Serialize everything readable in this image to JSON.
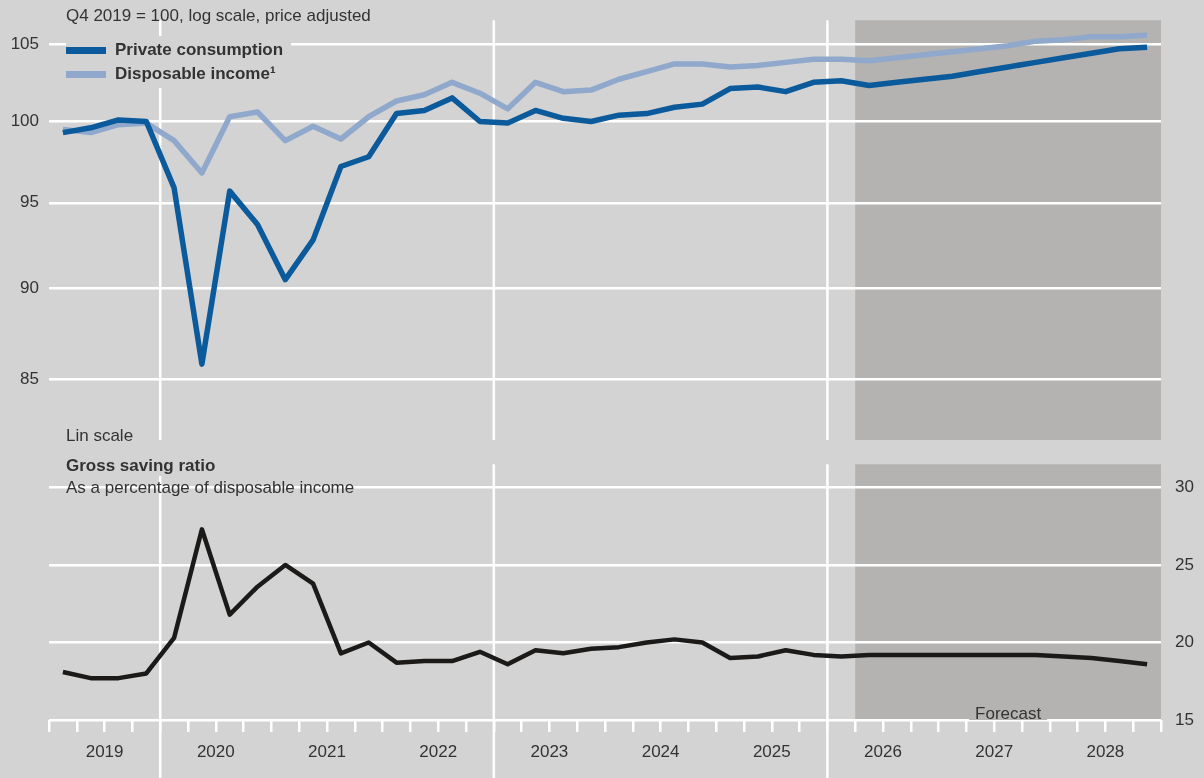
{
  "chart_data": [
    {
      "type": "line",
      "subtitle": "Q4 2019 = 100, log scale, price adjusted",
      "log": true,
      "grid": "y",
      "legend": "top left",
      "tick_labels": "y",
      "marker": "none",
      "xlim": [
        2019,
        2029
      ],
      "ylim": [
        85,
        106.6
      ],
      "yticks": [
        85,
        90,
        95,
        100,
        105
      ],
      "series": [
        {
          "name": "Private consumption",
          "color": "#0a5a9c",
          "x": [
            2019.125,
            2019.375,
            2019.625,
            2019.875,
            2020.125,
            2020.375,
            2020.625,
            2020.875,
            2021.125,
            2021.375,
            2021.625,
            2021.875,
            2022.125,
            2022.375,
            2022.625,
            2022.875,
            2023.125,
            2023.375,
            2023.625,
            2023.875,
            2024.125,
            2024.375,
            2024.625,
            2024.875,
            2025.125,
            2025.375,
            2025.625,
            2025.875,
            2026.125,
            2026.375,
            2026.625,
            2026.875,
            2027.125,
            2027.375,
            2027.625,
            2027.875,
            2028.125,
            2028.375,
            2028.625,
            2028.875
          ],
          "values": [
            99.3,
            99.6,
            100.1,
            100.0,
            95.9,
            85.8,
            95.7,
            93.7,
            90.5,
            92.8,
            97.2,
            97.8,
            100.5,
            100.7,
            101.5,
            100.0,
            99.9,
            100.7,
            100.2,
            100.0,
            100.4,
            100.5,
            100.9,
            101.1,
            102.1,
            102.2,
            101.9,
            102.5,
            102.6,
            102.3,
            102.5,
            102.7,
            102.9,
            103.2,
            103.5,
            103.8,
            104.1,
            104.4,
            104.7,
            104.8
          ]
        },
        {
          "name": "Disposable income¹",
          "color": "#8fa8cc",
          "x": [
            2019.125,
            2019.375,
            2019.625,
            2019.875,
            2020.125,
            2020.375,
            2020.625,
            2020.875,
            2021.125,
            2021.375,
            2021.625,
            2021.875,
            2022.125,
            2022.375,
            2022.625,
            2022.875,
            2023.125,
            2023.375,
            2023.625,
            2023.875,
            2024.125,
            2024.375,
            2024.625,
            2024.875,
            2025.125,
            2025.375,
            2025.625,
            2025.875,
            2026.125,
            2026.375,
            2026.625,
            2026.875,
            2027.125,
            2027.375,
            2027.625,
            2027.875,
            2028.125,
            2028.375,
            2028.625,
            2028.875
          ],
          "values": [
            99.5,
            99.3,
            99.8,
            99.9,
            98.8,
            96.8,
            100.3,
            100.6,
            98.8,
            99.7,
            98.9,
            100.3,
            101.3,
            101.7,
            102.5,
            101.8,
            100.8,
            102.5,
            101.9,
            102.0,
            102.7,
            103.2,
            103.7,
            103.7,
            103.5,
            103.6,
            103.8,
            104.0,
            104.0,
            103.9,
            104.1,
            104.3,
            104.5,
            104.7,
            104.9,
            105.2,
            105.3,
            105.5,
            105.5,
            105.6
          ]
        }
      ],
      "ref_lines": [
        {
          "axis": "x",
          "value": 2020,
          "color": "#ffffff"
        },
        {
          "axis": "x",
          "value": 2023,
          "color": "#ffffff"
        },
        {
          "axis": "x",
          "value": 2026,
          "color": "#ffffff"
        }
      ],
      "bands": [
        {
          "axis": "x",
          "from": 2026.25,
          "to": 2029,
          "color": "#b4b3b1"
        }
      ]
    },
    {
      "type": "line",
      "title": "Gross saving ratio",
      "subtitle": "As a percentage of disposable income",
      "annotations": [
        "Lin scale"
      ],
      "grid": "y",
      "marker": "none",
      "xlim": [
        2019,
        2029
      ],
      "y2lim": [
        15,
        31.5
      ],
      "y2ticks": [
        15,
        20,
        25,
        30
      ],
      "xticks": [
        {
          "value": 2019,
          "label": null
        },
        {
          "value": 2019.25,
          "label": null
        },
        {
          "value": 2019.5,
          "label": "2019"
        },
        {
          "value": 2019.75,
          "label": null
        },
        {
          "value": 2020,
          "label": null
        },
        {
          "value": 2020.25,
          "label": null
        },
        {
          "value": 2020.5,
          "label": "2020"
        },
        {
          "value": 2020.75,
          "label": null
        },
        {
          "value": 2021,
          "label": null
        },
        {
          "value": 2021.25,
          "label": null
        },
        {
          "value": 2021.5,
          "label": "2021"
        },
        {
          "value": 2021.75,
          "label": null
        },
        {
          "value": 2022,
          "label": null
        },
        {
          "value": 2022.25,
          "label": null
        },
        {
          "value": 2022.5,
          "label": "2022"
        },
        {
          "value": 2022.75,
          "label": null
        },
        {
          "value": 2023,
          "label": null
        },
        {
          "value": 2023.25,
          "label": null
        },
        {
          "value": 2023.5,
          "label": "2023"
        },
        {
          "value": 2023.75,
          "label": null
        },
        {
          "value": 2024,
          "label": null
        },
        {
          "value": 2024.25,
          "label": null
        },
        {
          "value": 2024.5,
          "label": "2024"
        },
        {
          "value": 2024.75,
          "label": null
        },
        {
          "value": 2025,
          "label": null
        },
        {
          "value": 2025.25,
          "label": null
        },
        {
          "value": 2025.5,
          "label": "2025"
        },
        {
          "value": 2025.75,
          "label": null
        },
        {
          "value": 2026,
          "label": null
        },
        {
          "value": 2026.25,
          "label": null
        },
        {
          "value": 2026.5,
          "label": "2026"
        },
        {
          "value": 2026.75,
          "label": null
        },
        {
          "value": 2027,
          "label": null
        },
        {
          "value": 2027.25,
          "label": null
        },
        {
          "value": 2027.5,
          "label": "2027"
        },
        {
          "value": 2027.75,
          "label": null
        },
        {
          "value": 2028,
          "label": null
        },
        {
          "value": 2028.25,
          "label": null
        },
        {
          "value": 2028.5,
          "label": "2028"
        },
        {
          "value": 2028.75,
          "label": null
        },
        {
          "value": 2029,
          "label": null
        }
      ],
      "series": [
        {
          "color": "#1c1a19",
          "axis": "y2",
          "x": [
            2019.125,
            2019.375,
            2019.625,
            2019.875,
            2020.125,
            2020.375,
            2020.625,
            2020.875,
            2021.125,
            2021.375,
            2021.625,
            2021.875,
            2022.125,
            2022.375,
            2022.625,
            2022.875,
            2023.125,
            2023.375,
            2023.625,
            2023.875,
            2024.125,
            2024.375,
            2024.625,
            2024.875,
            2025.125,
            2025.375,
            2025.625,
            2025.875,
            2026.125,
            2026.375,
            2026.625,
            2026.875,
            2027.125,
            2027.375,
            2027.625,
            2027.875,
            2028.125,
            2028.375,
            2028.625,
            2028.875
          ],
          "values": [
            18.1,
            17.7,
            17.7,
            18.0,
            20.3,
            27.3,
            21.8,
            23.6,
            25.0,
            23.8,
            19.3,
            20.0,
            18.7,
            18.8,
            18.8,
            19.4,
            18.6,
            19.5,
            19.3,
            19.6,
            19.7,
            20.0,
            20.2,
            20.0,
            19.0,
            19.1,
            19.5,
            19.2,
            19.1,
            19.2,
            19.2,
            19.2,
            19.2,
            19.2,
            19.2,
            19.2,
            19.1,
            19.0,
            18.8,
            18.6
          ]
        }
      ],
      "ref_lines": [
        {
          "axis": "x",
          "value": 2020,
          "color": "#ffffff"
        },
        {
          "axis": "x",
          "value": 2023,
          "color": "#ffffff"
        },
        {
          "axis": "x",
          "value": 2026,
          "color": "#ffffff"
        }
      ],
      "bands": [
        {
          "axis": "x",
          "from": 2026.25,
          "to": 2029,
          "label": "Forecast",
          "color": "#b4b3b1"
        }
      ]
    }
  ]
}
